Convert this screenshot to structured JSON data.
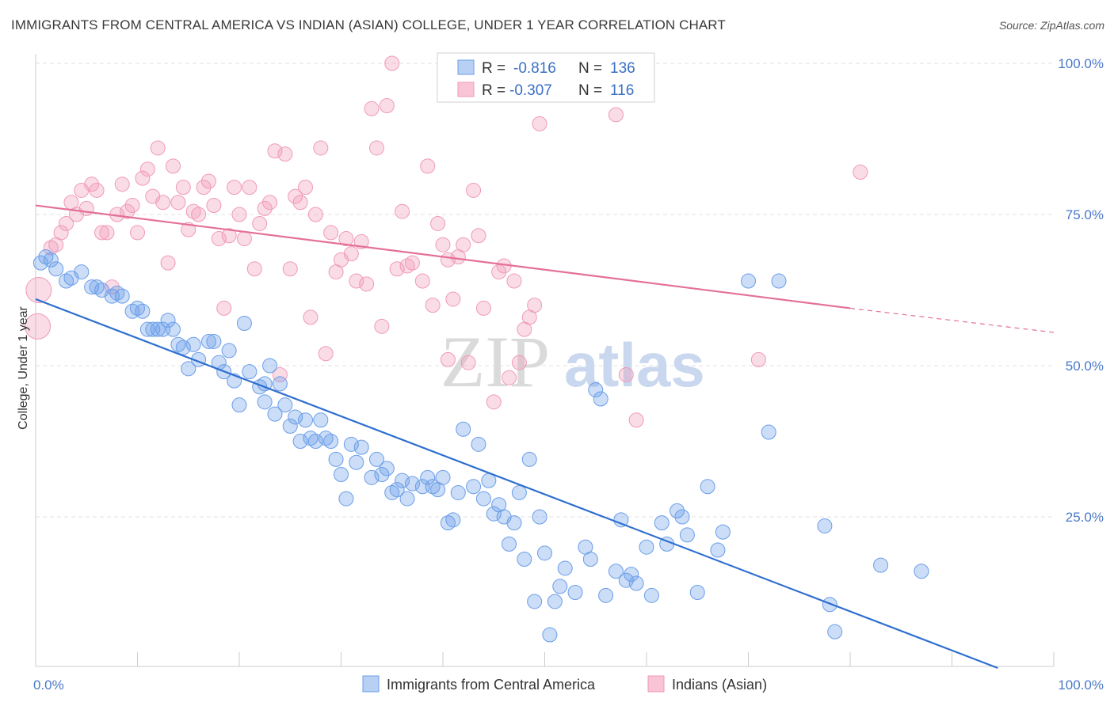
{
  "title": "IMMIGRANTS FROM CENTRAL AMERICA VS INDIAN (ASIAN) COLLEGE, UNDER 1 YEAR CORRELATION CHART",
  "source": "Source: ZipAtlas.com",
  "watermark": {
    "zip": "ZIP",
    "atlas": "atlas"
  },
  "chart_data": {
    "type": "scatter",
    "ylabel": "College, Under 1 year",
    "xlim": [
      0,
      100
    ],
    "ylim": [
      0,
      100
    ],
    "x_tick_labels": [
      {
        "value": 0,
        "label": "0.0%"
      },
      {
        "value": 100,
        "label": "100.0%"
      }
    ],
    "y_tick_labels": [
      {
        "value": 25,
        "label": "25.0%"
      },
      {
        "value": 50,
        "label": "50.0%"
      },
      {
        "value": 75,
        "label": "75.0%"
      },
      {
        "value": 100,
        "label": "100.0%"
      }
    ],
    "legend": [
      {
        "r_label": "R =",
        "r_value": "-0.816",
        "n_label": "N =",
        "n_value": "136"
      },
      {
        "r_label": "R =",
        "r_value": "-0.307",
        "n_label": "N =",
        "n_value": "116"
      }
    ],
    "series": [
      {
        "name": "Immigrants from Central America",
        "color": "#6b9ee8",
        "trend": {
          "x": [
            0,
            94.5
          ],
          "y": [
            61,
            0
          ]
        },
        "points": [
          [
            0.5,
            67
          ],
          [
            1,
            68
          ],
          [
            1.5,
            67.5
          ],
          [
            2,
            66
          ],
          [
            3,
            64
          ],
          [
            3.5,
            64.5
          ],
          [
            4.5,
            65.5
          ],
          [
            5.5,
            63
          ],
          [
            6,
            63
          ],
          [
            6.5,
            62.5
          ],
          [
            7.5,
            61.5
          ],
          [
            8,
            62
          ],
          [
            8.5,
            61.5
          ],
          [
            9.5,
            59
          ],
          [
            10,
            59.5
          ],
          [
            10.5,
            59
          ],
          [
            11,
            56
          ],
          [
            11.5,
            56
          ],
          [
            12,
            56
          ],
          [
            12.5,
            56
          ],
          [
            13,
            57.5
          ],
          [
            13.5,
            56
          ],
          [
            14,
            53.5
          ],
          [
            14.5,
            53
          ],
          [
            15,
            49.5
          ],
          [
            15.5,
            53.5
          ],
          [
            16,
            51
          ],
          [
            17,
            54
          ],
          [
            17.5,
            54
          ],
          [
            18,
            50.5
          ],
          [
            18.5,
            49
          ],
          [
            19,
            52.5
          ],
          [
            19.5,
            47.5
          ],
          [
            20,
            43.5
          ],
          [
            20.5,
            57
          ],
          [
            21,
            49
          ],
          [
            22,
            46.5
          ],
          [
            22.5,
            47
          ],
          [
            22.5,
            44
          ],
          [
            23,
            50
          ],
          [
            23.5,
            42
          ],
          [
            24,
            47
          ],
          [
            24.5,
            43.5
          ],
          [
            25,
            40
          ],
          [
            25.5,
            41.5
          ],
          [
            26,
            37.5
          ],
          [
            26.5,
            41
          ],
          [
            27,
            38
          ],
          [
            27.5,
            37.5
          ],
          [
            28,
            41
          ],
          [
            28.5,
            38
          ],
          [
            29,
            37.5
          ],
          [
            29.5,
            34.5
          ],
          [
            30,
            32
          ],
          [
            30.5,
            28
          ],
          [
            31,
            37
          ],
          [
            31.5,
            34
          ],
          [
            32,
            36.5
          ],
          [
            33,
            31.5
          ],
          [
            33.5,
            34.5
          ],
          [
            34,
            32
          ],
          [
            34.5,
            33
          ],
          [
            35,
            29
          ],
          [
            35.5,
            29.5
          ],
          [
            36,
            31
          ],
          [
            36.5,
            28
          ],
          [
            37,
            30.5
          ],
          [
            38,
            30
          ],
          [
            38.5,
            31.5
          ],
          [
            39,
            30
          ],
          [
            39.5,
            29.5
          ],
          [
            40,
            31.5
          ],
          [
            40.5,
            24
          ],
          [
            41,
            24.5
          ],
          [
            41.5,
            29
          ],
          [
            42,
            39.5
          ],
          [
            43,
            30
          ],
          [
            43.5,
            37
          ],
          [
            44,
            28
          ],
          [
            44.5,
            31
          ],
          [
            45,
            25.5
          ],
          [
            45.5,
            27
          ],
          [
            46,
            25
          ],
          [
            46.5,
            20.5
          ],
          [
            47,
            24
          ],
          [
            47.5,
            29
          ],
          [
            48,
            18
          ],
          [
            48.5,
            34.5
          ],
          [
            49,
            11
          ],
          [
            49.5,
            25
          ],
          [
            50,
            19
          ],
          [
            50.5,
            5.5
          ],
          [
            51,
            11
          ],
          [
            51.5,
            13.5
          ],
          [
            52,
            16.5
          ],
          [
            53,
            12.5
          ],
          [
            54,
            20
          ],
          [
            54.5,
            18
          ],
          [
            55,
            46
          ],
          [
            55.5,
            44.5
          ],
          [
            56,
            12
          ],
          [
            57,
            16
          ],
          [
            57.5,
            24.5
          ],
          [
            58,
            14.5
          ],
          [
            58.5,
            15.5
          ],
          [
            59,
            14
          ],
          [
            60,
            20
          ],
          [
            60.5,
            12
          ],
          [
            61.5,
            24
          ],
          [
            62,
            20.5
          ],
          [
            63,
            26
          ],
          [
            63.5,
            25
          ],
          [
            64,
            22
          ],
          [
            65,
            12.5
          ],
          [
            66,
            30
          ],
          [
            67,
            19.5
          ],
          [
            67.5,
            22.5
          ],
          [
            70,
            64
          ],
          [
            72,
            39
          ],
          [
            73,
            64
          ],
          [
            77.5,
            23.5
          ],
          [
            78,
            10.5
          ],
          [
            78.5,
            6
          ],
          [
            83,
            17
          ],
          [
            87,
            16
          ]
        ],
        "large_point": [
          0.3,
          67.5
        ]
      },
      {
        "name": "Indians (Asian)",
        "color": "#f09ab8",
        "trend": {
          "x": [
            0,
            80
          ],
          "y": [
            76.5,
            59.5
          ],
          "dash_x": [
            80,
            100
          ],
          "dash_y": [
            59.5,
            55.5
          ]
        },
        "points": [
          [
            1.5,
            69.5
          ],
          [
            2,
            70
          ],
          [
            2.5,
            72
          ],
          [
            3,
            73.5
          ],
          [
            3.5,
            77
          ],
          [
            4,
            75
          ],
          [
            4.5,
            79
          ],
          [
            5,
            76
          ],
          [
            5.5,
            80
          ],
          [
            6,
            79
          ],
          [
            6.5,
            72
          ],
          [
            7,
            72
          ],
          [
            7.5,
            63
          ],
          [
            8,
            75
          ],
          [
            8.5,
            80
          ],
          [
            9,
            75.5
          ],
          [
            9.5,
            76.5
          ],
          [
            10,
            72
          ],
          [
            10.5,
            81
          ],
          [
            11,
            82.5
          ],
          [
            11.5,
            78
          ],
          [
            12,
            86
          ],
          [
            12.5,
            77
          ],
          [
            13,
            67
          ],
          [
            13.5,
            83
          ],
          [
            14,
            77
          ],
          [
            14.5,
            79.5
          ],
          [
            15,
            72.5
          ],
          [
            15.5,
            75.5
          ],
          [
            16,
            75
          ],
          [
            16.5,
            79.5
          ],
          [
            17,
            80.5
          ],
          [
            17.5,
            76.5
          ],
          [
            18,
            71
          ],
          [
            18.5,
            59.5
          ],
          [
            19,
            71.5
          ],
          [
            19.5,
            79.5
          ],
          [
            20,
            75
          ],
          [
            20.5,
            71
          ],
          [
            21,
            79.5
          ],
          [
            21.5,
            66
          ],
          [
            22,
            73.5
          ],
          [
            22.5,
            76
          ],
          [
            23,
            77
          ],
          [
            23.5,
            85.5
          ],
          [
            24,
            48.5
          ],
          [
            24.5,
            85
          ],
          [
            25,
            66
          ],
          [
            25.5,
            78
          ],
          [
            26,
            77
          ],
          [
            26.5,
            79.5
          ],
          [
            27,
            58
          ],
          [
            27.5,
            75
          ],
          [
            28,
            86
          ],
          [
            28.5,
            52
          ],
          [
            29,
            72
          ],
          [
            29.5,
            65.5
          ],
          [
            30,
            67.5
          ],
          [
            30.5,
            71
          ],
          [
            31,
            68.5
          ],
          [
            31.5,
            64
          ],
          [
            32,
            70.5
          ],
          [
            32.5,
            63.5
          ],
          [
            33,
            92.5
          ],
          [
            33.5,
            86
          ],
          [
            34,
            56.5
          ],
          [
            34.5,
            93
          ],
          [
            35,
            100
          ],
          [
            35.5,
            66
          ],
          [
            36,
            75.5
          ],
          [
            36.5,
            66.5
          ],
          [
            37,
            67
          ],
          [
            38,
            64
          ],
          [
            38.5,
            83
          ],
          [
            39,
            60
          ],
          [
            39.5,
            73.5
          ],
          [
            40,
            70
          ],
          [
            40.5,
            67.5
          ],
          [
            40.5,
            51
          ],
          [
            41,
            61
          ],
          [
            41.5,
            68
          ],
          [
            42,
            70
          ],
          [
            42.5,
            50.5
          ],
          [
            43,
            79
          ],
          [
            43.5,
            71.5
          ],
          [
            44,
            59.5
          ],
          [
            45,
            44
          ],
          [
            45.5,
            65.5
          ],
          [
            46,
            66.5
          ],
          [
            46.5,
            48
          ],
          [
            47,
            64
          ],
          [
            47.5,
            50.5
          ],
          [
            48,
            56
          ],
          [
            48.5,
            58
          ],
          [
            49,
            60
          ],
          [
            49.5,
            90
          ],
          [
            50,
            97.5
          ],
          [
            57,
            91.5
          ],
          [
            58,
            48.5
          ],
          [
            59,
            41
          ],
          [
            71,
            51
          ],
          [
            81,
            82
          ],
          [
            0.3,
            62.5
          ],
          [
            0.2,
            56.5
          ]
        ],
        "large_points": [
          [
            0.3,
            62.5
          ],
          [
            0.2,
            56.5
          ]
        ]
      }
    ]
  }
}
